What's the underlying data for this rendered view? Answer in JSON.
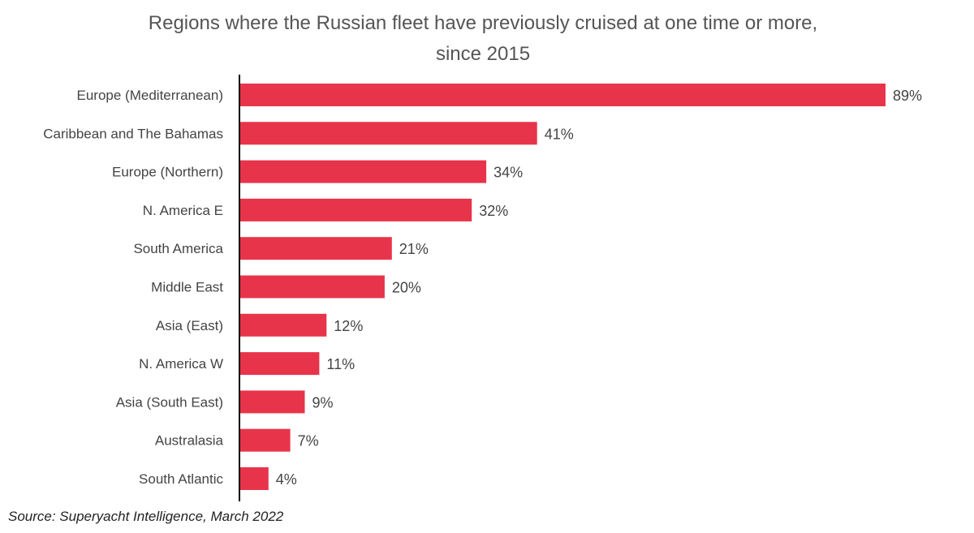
{
  "chart_data": {
    "type": "bar",
    "orientation": "horizontal",
    "title_lines": [
      "Regions where the Russian fleet have previously cruised at one time or more,",
      "since 2015"
    ],
    "categories": [
      "Europe (Mediterranean)",
      "Caribbean and The Bahamas",
      "Europe (Northern)",
      "N. America E",
      "South America",
      "Middle East",
      "Asia (East)",
      "N. America W",
      "Asia (South East)",
      "Australasia",
      "South Atlantic"
    ],
    "values": [
      89,
      41,
      34,
      32,
      21,
      20,
      12,
      11,
      9,
      7,
      4
    ],
    "data_labels": [
      "89%",
      "41%",
      "34%",
      "32%",
      "21%",
      "20%",
      "12%",
      "11%",
      "9%",
      "7%",
      "4%"
    ],
    "unit": "%",
    "xlim": [
      0,
      89
    ],
    "grid": false,
    "legend": "none",
    "bar_color": "#e8344a"
  },
  "source": "Source: Superyacht Intelligence, March 2022"
}
